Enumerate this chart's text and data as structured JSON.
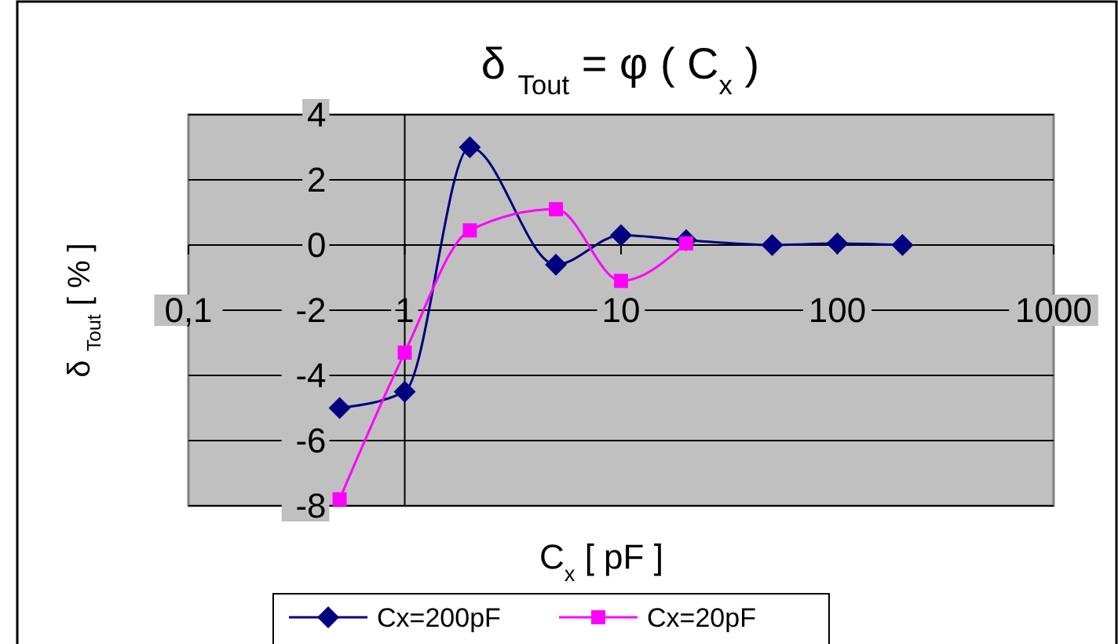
{
  "chart_data": {
    "type": "line",
    "title": "δ $_{Tout}$ = φ ( C$_{x}$ )",
    "xlabel": "C$_{x}$ [ pF ]",
    "ylabel": "δ $_{Tout}$ [ % ]",
    "log": "x",
    "xlim": [
      0.1,
      1000
    ],
    "xticks": [
      {
        "value": 0.1,
        "label": "0,1"
      },
      1,
      10,
      100,
      1000
    ],
    "ylim": [
      -8,
      4
    ],
    "yticks": [
      -8,
      -6,
      -4,
      -2,
      0,
      2,
      4
    ],
    "grid": "y",
    "legend": "bottom",
    "line_style": "solid",
    "x": [
      0.5,
      1,
      2,
      5,
      10,
      20,
      50,
      100,
      200
    ],
    "series": [
      {
        "name": "Cx=200pF",
        "color": "#000080",
        "marker": "diamond",
        "values": [
          -5,
          -4.5,
          3,
          -0.6,
          0.3,
          0.15,
          0,
          0.05,
          0
        ]
      },
      {
        "name": "Cx=20pF",
        "color": "#ff00ff",
        "marker": "square",
        "x": [
          0.5,
          1,
          2,
          5,
          10,
          20
        ],
        "values": [
          -7.8,
          -3.3,
          0.45,
          1.1,
          -1.1,
          0.05
        ]
      }
    ]
  }
}
